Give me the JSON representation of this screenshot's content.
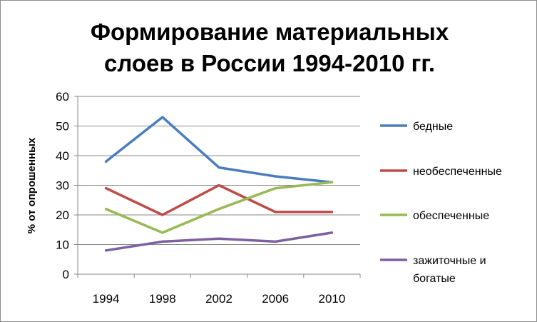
{
  "chart_data": {
    "type": "line",
    "title_lines": [
      "Формирование материальных",
      "слоев в России 1994-2010 гг."
    ],
    "ylabel": "% от опрошенных",
    "xlabel": "",
    "categories": [
      "1994",
      "1998",
      "2002",
      "2006",
      "2010"
    ],
    "ylim": [
      0,
      60
    ],
    "yticks": [
      0,
      10,
      20,
      30,
      40,
      50,
      60
    ],
    "grid": true,
    "legend_position": "right",
    "series": [
      {
        "name": "бедные",
        "color": "#4a7ebb",
        "values": [
          38,
          53,
          36,
          33,
          31
        ]
      },
      {
        "name": "необеспеченные",
        "color": "#be4b48",
        "values": [
          29,
          20,
          30,
          21,
          21
        ]
      },
      {
        "name": "обеспеченные",
        "color": "#98b954",
        "values": [
          22,
          14,
          22,
          29,
          31
        ]
      },
      {
        "name_lines": [
          "зажиточные и",
          "богатые"
        ],
        "color": "#7d60a0",
        "values": [
          8,
          11,
          12,
          11,
          14
        ]
      }
    ]
  }
}
